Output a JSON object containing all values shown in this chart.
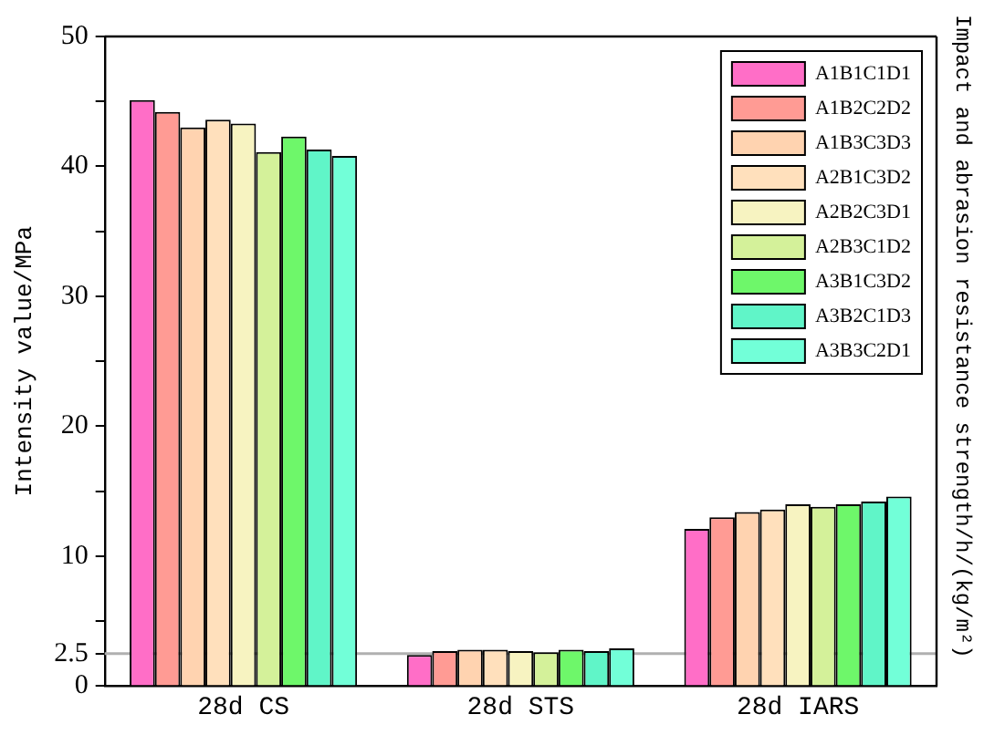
{
  "chart_data": {
    "type": "bar",
    "categories": [
      "28d CS",
      "28d STS",
      "28d IARS"
    ],
    "series": [
      {
        "name": "A1B1C1D1",
        "color": "#ff6ec7",
        "values": [
          45.1,
          2.4,
          12.1
        ]
      },
      {
        "name": "A1B2C2D2",
        "color": "#ff9b94",
        "values": [
          44.2,
          2.7,
          13.0
        ]
      },
      {
        "name": "A1B3C3D3",
        "color": "#ffd3b0",
        "values": [
          43.0,
          2.8,
          13.4
        ]
      },
      {
        "name": "A2B1C3D2",
        "color": "#ffe0bc",
        "values": [
          43.6,
          2.8,
          13.6
        ]
      },
      {
        "name": "A2B2C3D1",
        "color": "#f7f3c1",
        "values": [
          43.3,
          2.7,
          14.0
        ]
      },
      {
        "name": "A2B3C1D2",
        "color": "#d4f19a",
        "values": [
          41.1,
          2.6,
          13.8
        ]
      },
      {
        "name": "A3B1C3D2",
        "color": "#6ef76a",
        "values": [
          42.3,
          2.8,
          14.0
        ]
      },
      {
        "name": "A3B2C1D3",
        "color": "#60f5c8",
        "values": [
          41.3,
          2.7,
          14.2
        ]
      },
      {
        "name": "A3B3C2D1",
        "color": "#72ffd8",
        "values": [
          40.8,
          2.9,
          14.6
        ]
      }
    ],
    "ylabel": "Intensity value/MPa",
    "y2label": "Impact and abrasion resistance strength/h/(kg/m²)",
    "ylim": [
      0,
      50
    ],
    "yticks": [
      0,
      2.5,
      {
        "value": 5,
        "label": null
      },
      10,
      {
        "value": 15,
        "label": null
      },
      20,
      {
        "value": 25,
        "label": null
      },
      30,
      {
        "value": 35,
        "label": null
      },
      40,
      {
        "value": 45,
        "label": null
      },
      50
    ],
    "ref_lines": [
      {
        "axis": "y",
        "value": 2.5,
        "color": "#b0b0b0"
      }
    ],
    "grid": false,
    "legend": "top right"
  }
}
